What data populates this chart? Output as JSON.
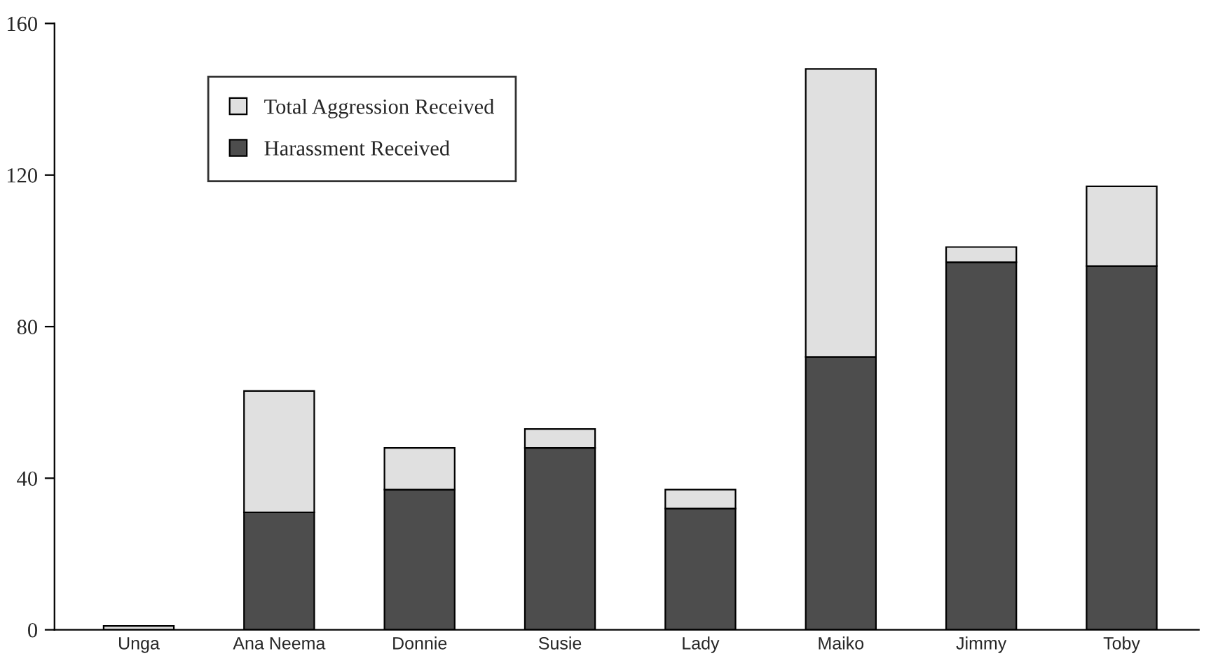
{
  "chart_data": {
    "type": "bar",
    "stacked": true,
    "categories": [
      "Unga",
      "Ana Neema",
      "Donnie",
      "Susie",
      "Lady",
      "Maiko",
      "Jimmy",
      "Toby"
    ],
    "series": [
      {
        "name": "Harassment Received",
        "color": "#4d4d4d",
        "values": [
          0,
          31,
          37,
          48,
          32,
          72,
          97,
          96
        ]
      },
      {
        "name": "Total Aggression Received",
        "color": "#e0e0e0",
        "values": [
          1,
          32,
          11,
          5,
          5,
          76,
          4,
          21
        ]
      }
    ],
    "ylim": [
      0,
      160
    ],
    "yticks": [
      0,
      40,
      80,
      120,
      160
    ],
    "grid": false,
    "legend": "top left"
  }
}
